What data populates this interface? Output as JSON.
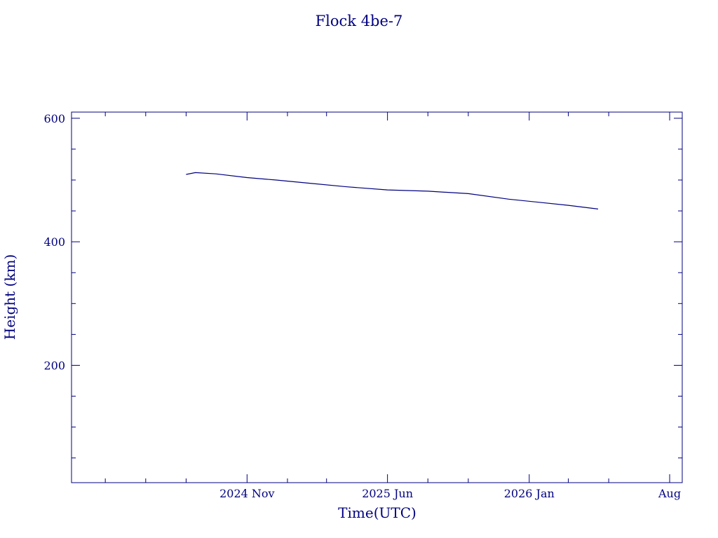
{
  "chart_data": {
    "type": "line",
    "title": "Flock 4be-7",
    "xlabel": "Time(UTC)",
    "ylabel": "Height (km)",
    "x_axis": {
      "kind": "date",
      "range": [
        "2024-02-10",
        "2026-08-20"
      ],
      "major_ticks": [
        {
          "date": "2024-11-01",
          "label": "2024 Nov"
        },
        {
          "date": "2025-06-01",
          "label": "2025 Jun"
        },
        {
          "date": "2026-01-01",
          "label": "2026 Jan"
        },
        {
          "date": "2026-08-01",
          "label": "Aug"
        }
      ],
      "minor_ticks": [
        "2024-04-01",
        "2024-06-01",
        "2024-08-01",
        "2025-01-01",
        "2025-03-01",
        "2025-08-01",
        "2025-10-01",
        "2026-03-01",
        "2026-05-01"
      ]
    },
    "y_axis": {
      "range": [
        10,
        610
      ],
      "major_ticks": [
        {
          "value": 200,
          "label": "200"
        },
        {
          "value": 400,
          "label": "400"
        },
        {
          "value": 600,
          "label": "600"
        }
      ],
      "minor_ticks": [
        50,
        100,
        150,
        250,
        300,
        350,
        450,
        500,
        550
      ]
    },
    "series": [
      {
        "color": "#000080",
        "points": [
          {
            "x": "2024-08-01",
            "y": 509
          },
          {
            "x": "2024-08-15",
            "y": 512
          },
          {
            "x": "2024-09-15",
            "y": 510
          },
          {
            "x": "2024-11-01",
            "y": 504
          },
          {
            "x": "2024-12-15",
            "y": 500
          },
          {
            "x": "2025-02-01",
            "y": 495
          },
          {
            "x": "2025-04-01",
            "y": 489
          },
          {
            "x": "2025-06-01",
            "y": 484
          },
          {
            "x": "2025-08-01",
            "y": 482
          },
          {
            "x": "2025-10-01",
            "y": 478
          },
          {
            "x": "2025-12-01",
            "y": 469
          },
          {
            "x": "2026-01-15",
            "y": 464
          },
          {
            "x": "2026-03-01",
            "y": 459
          },
          {
            "x": "2026-04-15",
            "y": 453
          }
        ]
      }
    ],
    "grid": false
  }
}
